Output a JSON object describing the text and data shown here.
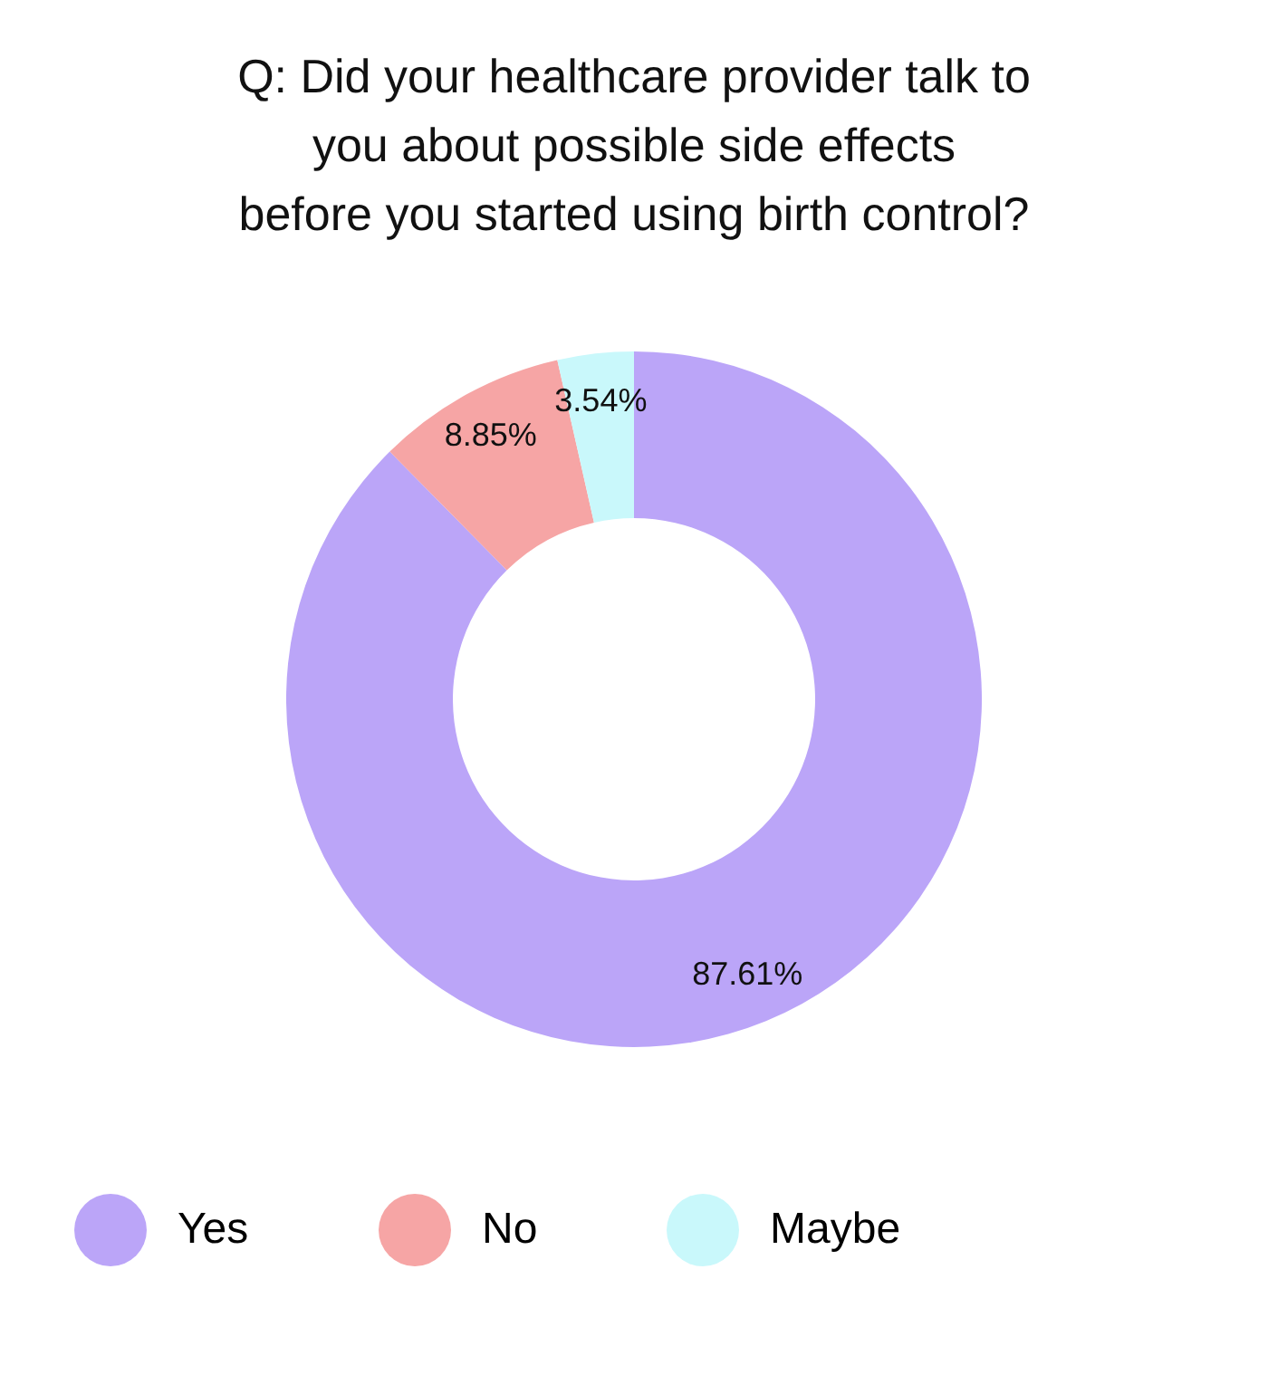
{
  "chart_data": {
    "type": "donut",
    "title": [
      "Q: Did your healthcare provider talk to",
      "you about possible side effects",
      "before you started using birth control?"
    ],
    "categories": [
      "Yes",
      "No",
      "Maybe"
    ],
    "values": [
      87.61,
      8.85,
      3.54
    ],
    "value_labels": [
      "87.61%",
      "8.85%",
      "3.54%"
    ],
    "colors": [
      "#bba5f8",
      "#f6a5a5",
      "#c9f8fb"
    ],
    "legend": "bottom"
  }
}
